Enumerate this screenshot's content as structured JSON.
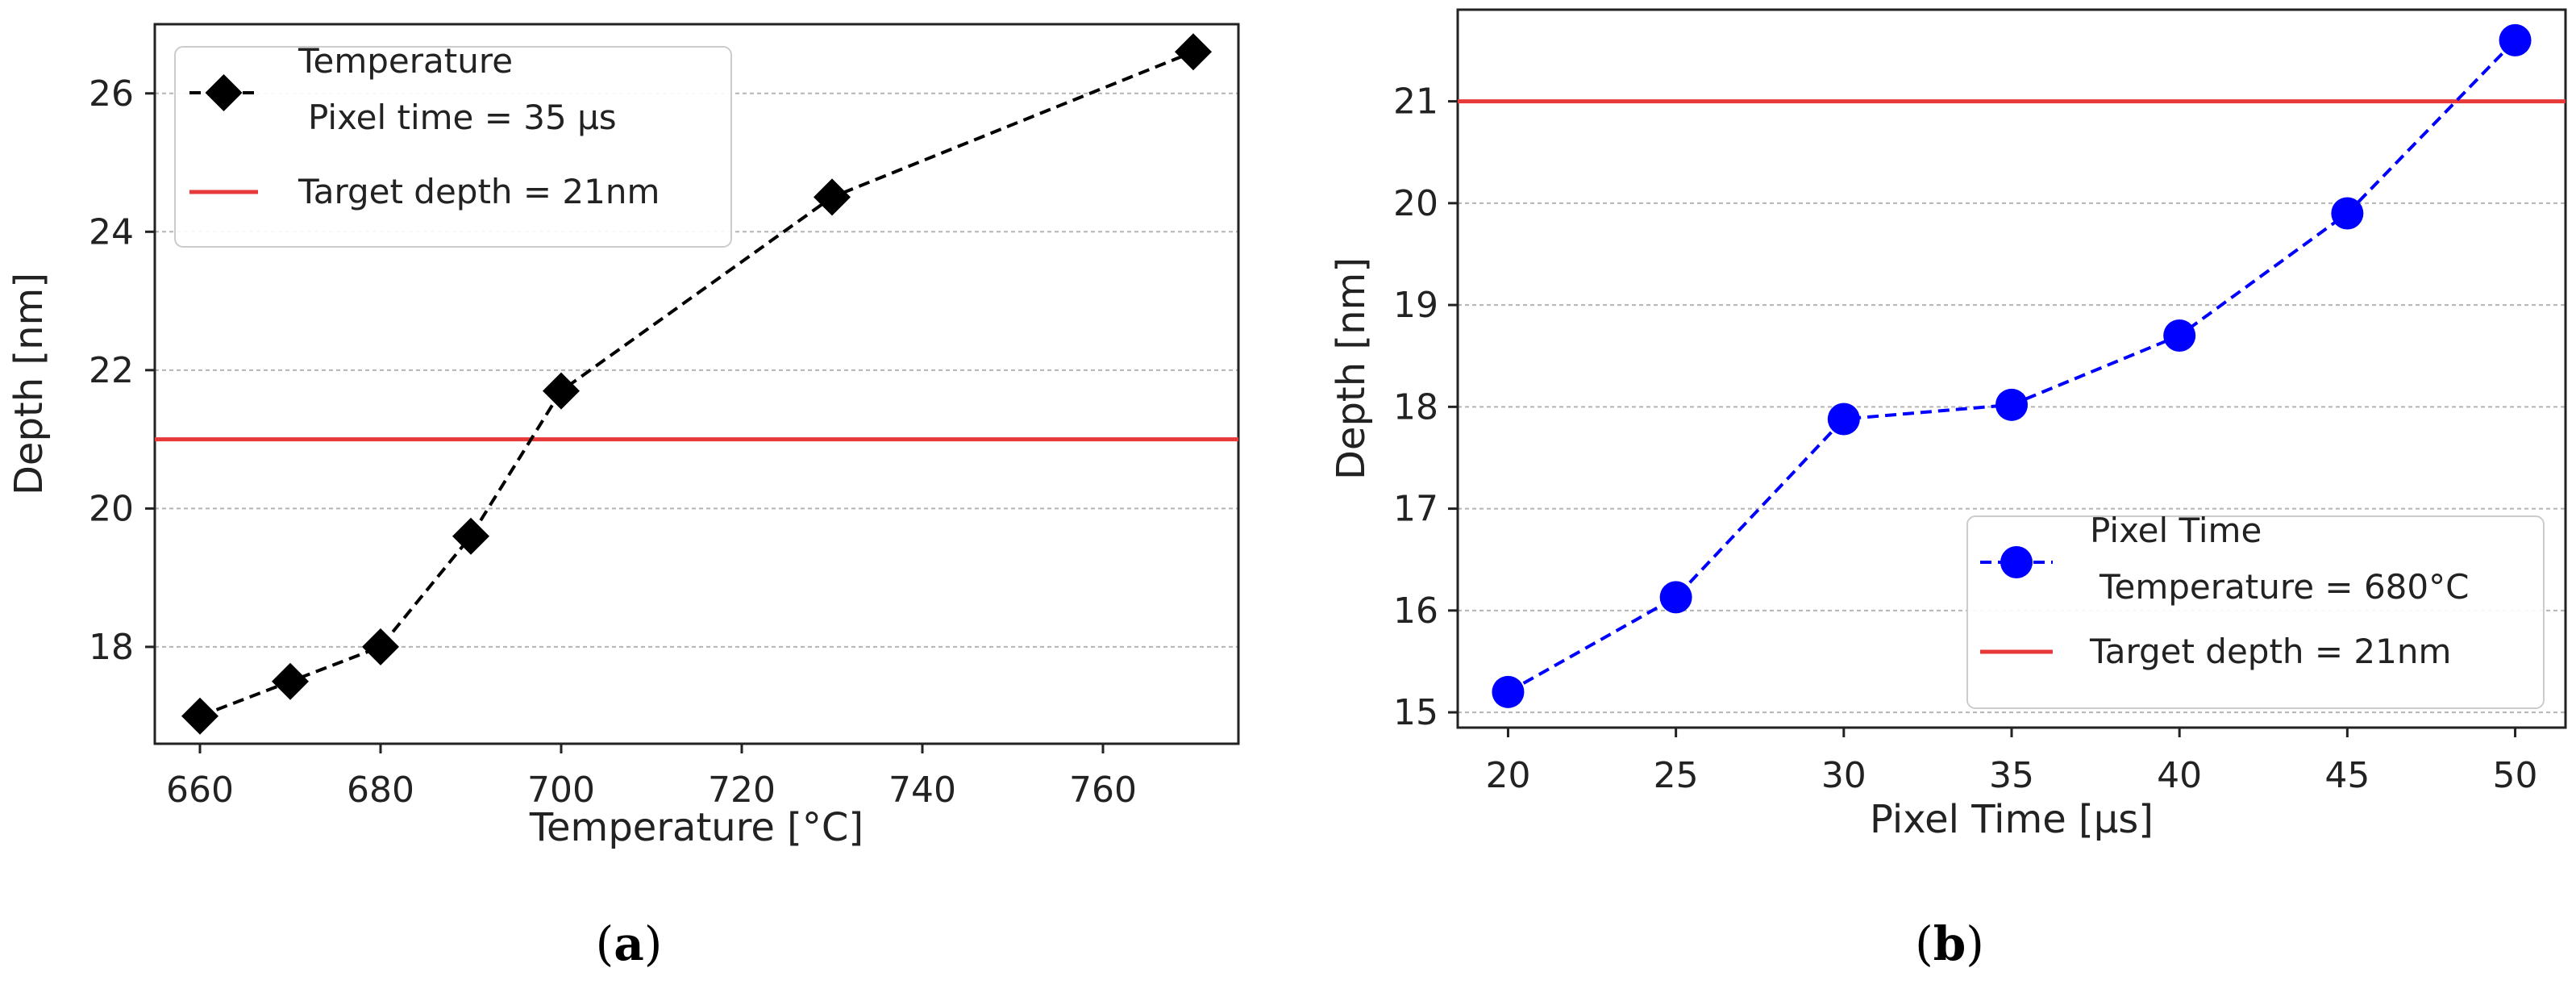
{
  "chart_data": [
    {
      "type": "line",
      "panel": "a",
      "caption_open": "(",
      "caption_letter": "a",
      "caption_close": ")",
      "title": "",
      "xlabel": "Temperature [°C]",
      "ylabel": "Depth [nm]",
      "xlim": [
        655,
        775
      ],
      "ylim": [
        16.6,
        27.0
      ],
      "xticks": [
        660,
        680,
        700,
        720,
        740,
        760
      ],
      "yticks": [
        18,
        20,
        22,
        24,
        26
      ],
      "grid": "horizontal dashed",
      "legend_position": "top-left",
      "series": [
        {
          "name": "Temperature",
          "name_line2": "Pixel time = 35 μs",
          "color": "#000000",
          "marker": "diamond",
          "linestyle": "dashed",
          "x": [
            660,
            670,
            680,
            690,
            700,
            730,
            770
          ],
          "y": [
            17.0,
            17.5,
            18.0,
            19.6,
            21.7,
            24.5,
            26.6
          ]
        }
      ],
      "hline": {
        "name": "Target depth = 21nm",
        "y": 21,
        "color": "#e8393a"
      }
    },
    {
      "type": "line",
      "panel": "b",
      "caption_open": "(",
      "caption_letter": "b",
      "caption_close": ")",
      "title": "",
      "xlabel": "Pixel Time [μs]",
      "ylabel": "Depth [nm]",
      "xlim": [
        18.5,
        51.5
      ],
      "ylim": [
        14.85,
        21.9
      ],
      "xticks": [
        20,
        25,
        30,
        35,
        40,
        45,
        50
      ],
      "yticks": [
        15,
        16,
        17,
        18,
        19,
        20,
        21
      ],
      "grid": "horizontal dashed",
      "legend_position": "lower-right",
      "series": [
        {
          "name": "Pixel Time",
          "name_line2": "Temperature = 680°C",
          "color": "#0000ff",
          "marker": "circle",
          "linestyle": "dashed",
          "x": [
            20,
            25,
            30,
            35,
            40,
            45,
            50
          ],
          "y": [
            15.2,
            16.13,
            17.88,
            18.02,
            18.7,
            19.9,
            21.6
          ]
        }
      ],
      "hline": {
        "name": "Target depth = 21nm",
        "y": 21,
        "color": "#e8393a"
      }
    }
  ]
}
